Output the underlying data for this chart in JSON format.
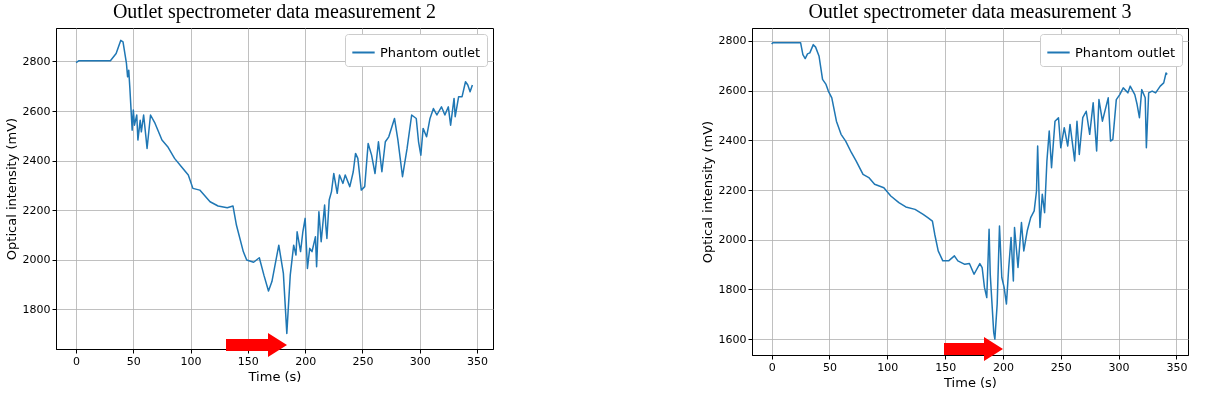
{
  "chart_data": [
    {
      "type": "line",
      "title": "Outlet spectrometer data measurement 2",
      "xlabel": "Time (s)",
      "ylabel": "Optical intensity (mV)",
      "xlim": [
        -17.5,
        364
      ],
      "ylim": [
        1640,
        2935
      ],
      "xticks": [
        0,
        50,
        100,
        150,
        200,
        250,
        300,
        350
      ],
      "yticks": [
        1800,
        2000,
        2200,
        2400,
        2600,
        2800
      ],
      "grid": true,
      "legend": "top right",
      "series": [
        {
          "name": "Phantom outlet",
          "color": "#1f77b4",
          "x": [
            0,
            2.6,
            30,
            35,
            39,
            41,
            44,
            45,
            46,
            47,
            49,
            50,
            51,
            53,
            54,
            56,
            57,
            59,
            61,
            62,
            65,
            69,
            75,
            80,
            86,
            92,
            98,
            102,
            108,
            117,
            124,
            132,
            137,
            140,
            146,
            149,
            155,
            160,
            164,
            168,
            171,
            177,
            181,
            184,
            187,
            190,
            192,
            193,
            196,
            198,
            200,
            202,
            204,
            206,
            209,
            210,
            212,
            214,
            217,
            218,
            219,
            221,
            223,
            225,
            228,
            230,
            233,
            235,
            239,
            242,
            244,
            246,
            249,
            252,
            255,
            258,
            261,
            264,
            267,
            270,
            273,
            278,
            281,
            285,
            289,
            293,
            297,
            299,
            301,
            303,
            306,
            309,
            312,
            315,
            319,
            322,
            325,
            327,
            330,
            331,
            334,
            337,
            340,
            342,
            344,
            346
          ],
          "values": [
            2795,
            2803,
            2803,
            2832,
            2885,
            2879,
            2792,
            2738,
            2765,
            2691,
            2523,
            2604,
            2543,
            2584,
            2483,
            2563,
            2516,
            2584,
            2496,
            2449,
            2584,
            2550,
            2483,
            2456,
            2409,
            2375,
            2342,
            2288,
            2281,
            2234,
            2217,
            2210,
            2217,
            2140,
            2033,
            1999,
            1990,
            2008,
            1938,
            1874,
            1912,
            2059,
            1945,
            1703,
            1938,
            2059,
            2019,
            2113,
            2033,
            2113,
            2167,
            1965,
            2046,
            2033,
            2093,
            1972,
            2194,
            2073,
            2221,
            2140,
            2086,
            2241,
            2275,
            2348,
            2268,
            2342,
            2308,
            2342,
            2295,
            2355,
            2429,
            2409,
            2281,
            2295,
            2469,
            2422,
            2348,
            2476,
            2355,
            2476,
            2496,
            2570,
            2483,
            2335,
            2449,
            2584,
            2570,
            2476,
            2422,
            2530,
            2496,
            2570,
            2610,
            2584,
            2617,
            2584,
            2617,
            2543,
            2651,
            2577,
            2658,
            2658,
            2718,
            2705,
            2678,
            2705
          ]
        }
      ]
    },
    {
      "type": "line",
      "title": "Outlet spectrometer data measurement 3",
      "xlabel": "Time (s)",
      "ylabel": "Optical intensity (mV)",
      "xlim": [
        -17,
        360
      ],
      "ylim": [
        1536,
        2852
      ],
      "xticks": [
        0,
        50,
        100,
        150,
        200,
        250,
        300,
        350
      ],
      "yticks": [
        1600,
        1800,
        2000,
        2200,
        2400,
        2600,
        2800
      ],
      "grid": true,
      "legend": "top right",
      "series": [
        {
          "name": "Phantom outlet",
          "color": "#1f77b4",
          "x": [
            0,
            1,
            25,
            27,
            29,
            31,
            33,
            36,
            38,
            41,
            44,
            47,
            49,
            52,
            56,
            60,
            64,
            69,
            73,
            79,
            84,
            89,
            97,
            103,
            110,
            116,
            124,
            131,
            135,
            139,
            141,
            144,
            148,
            153,
            158,
            161,
            167,
            171,
            175,
            180,
            182,
            184,
            186,
            188,
            189,
            192,
            193,
            195,
            197,
            199,
            201,
            203,
            205,
            207,
            209,
            210,
            213,
            216,
            218,
            221,
            224,
            227,
            229,
            230,
            232,
            234,
            236,
            238,
            240,
            242,
            245,
            248,
            250,
            253,
            256,
            258,
            262,
            264,
            266,
            269,
            272,
            275,
            278,
            281,
            283,
            286,
            291,
            293,
            295,
            298,
            301,
            304,
            308,
            310,
            314,
            316,
            318,
            320,
            323,
            324,
            326,
            329,
            332,
            336,
            339,
            341,
            342
          ],
          "values": [
            2788,
            2793,
            2793,
            2745,
            2729,
            2748,
            2752,
            2785,
            2775,
            2738,
            2645,
            2625,
            2598,
            2571,
            2477,
            2424,
            2397,
            2350,
            2317,
            2263,
            2250,
            2223,
            2209,
            2176,
            2149,
            2132,
            2122,
            2102,
            2089,
            2075,
            2022,
            1955,
            1915,
            1915,
            1935,
            1915,
            1901,
            1904,
            1861,
            1904,
            1888,
            1808,
            1767,
            2042,
            1861,
            1627,
            1600,
            1741,
            2055,
            1848,
            1808,
            1741,
            1888,
            2009,
            1834,
            2049,
            1888,
            2069,
            1955,
            2036,
            2089,
            2116,
            2196,
            2377,
            2049,
            2183,
            2109,
            2317,
            2437,
            2290,
            2477,
            2491,
            2370,
            2451,
            2377,
            2464,
            2317,
            2477,
            2343,
            2491,
            2517,
            2424,
            2551,
            2357,
            2564,
            2477,
            2571,
            2397,
            2404,
            2564,
            2584,
            2611,
            2591,
            2618,
            2584,
            2544,
            2491,
            2604,
            2571,
            2370,
            2591,
            2598,
            2591,
            2618,
            2631,
            2671,
            2665
          ]
        }
      ]
    }
  ]
}
